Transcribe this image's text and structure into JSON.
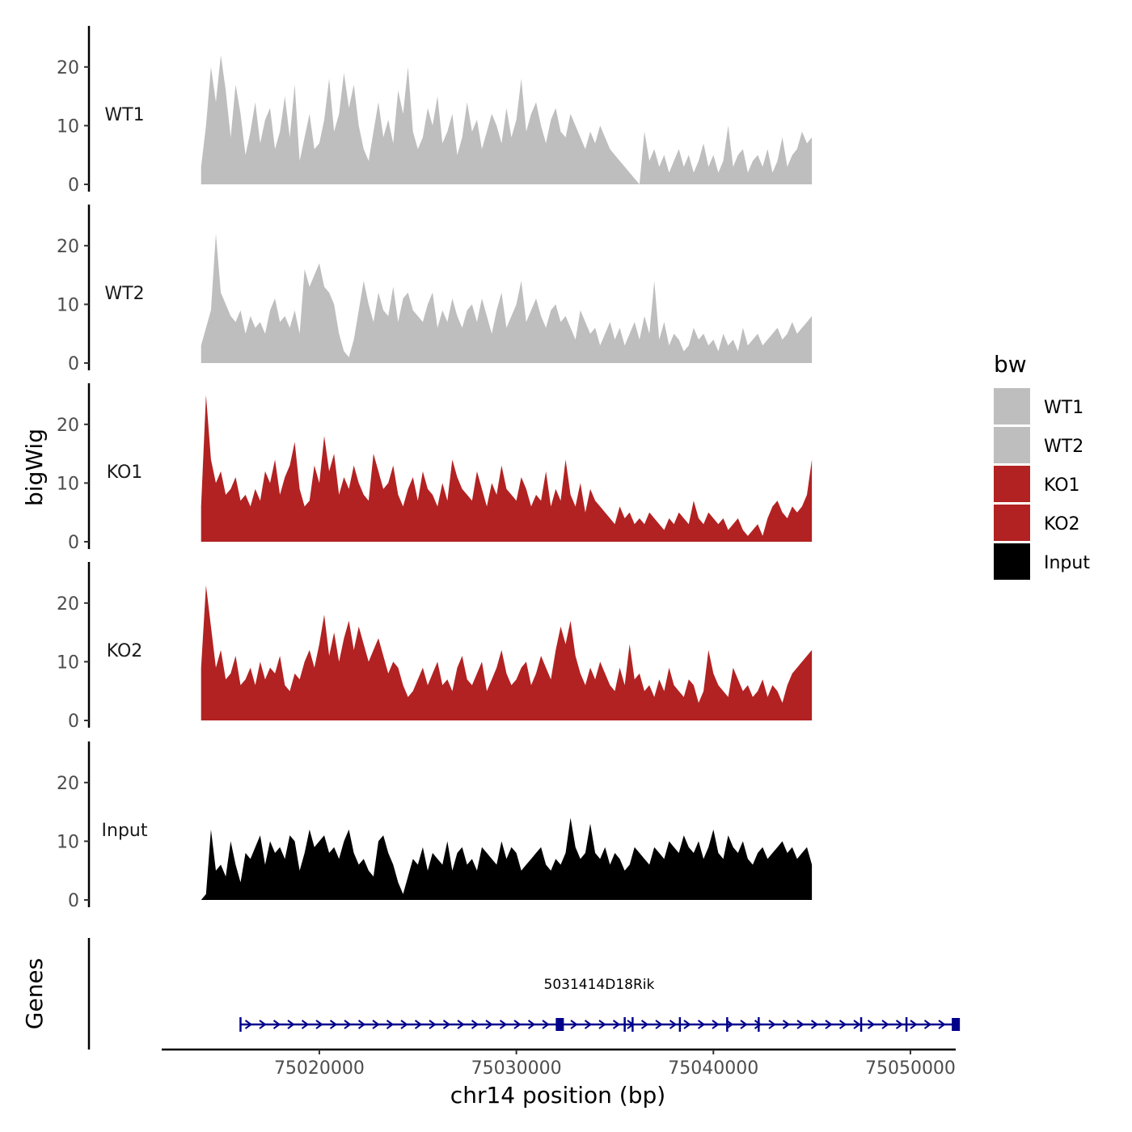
{
  "chart_data": {
    "type": "area",
    "ylabel": "bigWig",
    "xlabel": "chr14 position (bp)",
    "genes_label": "Genes",
    "legend": {
      "title": "bw",
      "position": "right",
      "entries": [
        {
          "name": "WT1",
          "color": "#bebebe"
        },
        {
          "name": "WT2",
          "color": "#bebebe"
        },
        {
          "name": "KO1",
          "color": "#b22222"
        },
        {
          "name": "KO2",
          "color": "#b22222"
        },
        {
          "name": "Input",
          "color": "#000000"
        }
      ]
    },
    "xlim": [
      75012000,
      75052300
    ],
    "x_ticks": [
      75020000,
      75030000,
      75040000,
      75050000
    ],
    "x_tick_labels": [
      "75020000",
      "75030000",
      "75040000",
      "75050000"
    ],
    "ylim": [
      0,
      27
    ],
    "y_ticks": [
      0,
      10,
      20
    ],
    "y_tick_labels": [
      "0",
      "10",
      "20"
    ],
    "data_x_start": 75014000,
    "data_x_step": 250,
    "series": [
      {
        "name": "WT1",
        "color": "#bebebe",
        "values": [
          3,
          10,
          20,
          14,
          22,
          16,
          8,
          17,
          12,
          5,
          9,
          14,
          7,
          11,
          13,
          6,
          9,
          15,
          8,
          17,
          4,
          8,
          12,
          6,
          7,
          11,
          18,
          9,
          12,
          19,
          13,
          17,
          10,
          6,
          4,
          9,
          14,
          8,
          11,
          7,
          16,
          12,
          20,
          9,
          6,
          8,
          13,
          10,
          15,
          7,
          9,
          12,
          5,
          8,
          14,
          9,
          11,
          6,
          9,
          12,
          10,
          7,
          13,
          8,
          11,
          18,
          9,
          12,
          14,
          10,
          7,
          11,
          13,
          9,
          8,
          12,
          10,
          8,
          6,
          9,
          7,
          10,
          8,
          6,
          5,
          4,
          3,
          2,
          1,
          0,
          9,
          4,
          6,
          3,
          5,
          2,
          4,
          6,
          3,
          5,
          2,
          4,
          7,
          3,
          5,
          2,
          4,
          10,
          3,
          5,
          6,
          2,
          4,
          5,
          3,
          6,
          2,
          4,
          8,
          3,
          5,
          6,
          9,
          7,
          8
        ]
      },
      {
        "name": "WT2",
        "color": "#bebebe",
        "values": [
          3,
          6,
          9,
          22,
          12,
          10,
          8,
          7,
          9,
          5,
          8,
          6,
          7,
          5,
          9,
          11,
          7,
          8,
          6,
          9,
          5,
          16,
          13,
          15,
          17,
          13,
          12,
          10,
          5,
          2,
          1,
          4,
          9,
          14,
          10,
          7,
          12,
          9,
          8,
          13,
          7,
          11,
          12,
          9,
          8,
          7,
          10,
          12,
          6,
          9,
          7,
          11,
          8,
          6,
          9,
          10,
          7,
          11,
          8,
          5,
          9,
          12,
          6,
          8,
          10,
          14,
          7,
          9,
          11,
          8,
          6,
          9,
          10,
          7,
          8,
          6,
          4,
          9,
          7,
          5,
          6,
          3,
          5,
          7,
          4,
          6,
          3,
          5,
          7,
          4,
          8,
          5,
          14,
          4,
          7,
          3,
          5,
          4,
          2,
          3,
          6,
          4,
          5,
          3,
          4,
          2,
          5,
          3,
          4,
          2,
          6,
          3,
          4,
          5,
          3,
          4,
          5,
          6,
          4,
          5,
          7,
          5,
          6,
          7,
          8
        ]
      },
      {
        "name": "KO1",
        "color": "#b22222",
        "values": [
          6,
          25,
          14,
          10,
          12,
          8,
          9,
          11,
          7,
          8,
          6,
          9,
          7,
          12,
          10,
          14,
          8,
          11,
          13,
          17,
          9,
          6,
          7,
          13,
          10,
          18,
          12,
          15,
          8,
          11,
          9,
          13,
          10,
          8,
          7,
          15,
          12,
          9,
          10,
          13,
          8,
          6,
          9,
          11,
          7,
          12,
          9,
          8,
          6,
          10,
          7,
          14,
          11,
          9,
          8,
          7,
          12,
          9,
          6,
          10,
          8,
          13,
          9,
          8,
          7,
          11,
          9,
          6,
          8,
          7,
          12,
          6,
          9,
          7,
          14,
          8,
          6,
          10,
          5,
          9,
          7,
          6,
          5,
          4,
          3,
          6,
          4,
          5,
          3,
          4,
          3,
          5,
          4,
          3,
          2,
          4,
          3,
          5,
          4,
          3,
          7,
          4,
          3,
          5,
          4,
          3,
          4,
          2,
          3,
          4,
          2,
          1,
          2,
          3,
          1,
          4,
          6,
          7,
          5,
          4,
          6,
          5,
          6,
          8,
          14
        ]
      },
      {
        "name": "KO2",
        "color": "#b22222",
        "values": [
          9,
          23,
          16,
          9,
          12,
          7,
          8,
          11,
          6,
          7,
          9,
          6,
          10,
          7,
          9,
          8,
          11,
          6,
          5,
          8,
          7,
          10,
          12,
          9,
          13,
          18,
          11,
          15,
          10,
          14,
          17,
          12,
          16,
          13,
          10,
          12,
          14,
          11,
          8,
          10,
          9,
          6,
          4,
          5,
          7,
          9,
          6,
          8,
          10,
          6,
          7,
          5,
          9,
          11,
          7,
          6,
          8,
          10,
          5,
          7,
          9,
          12,
          8,
          6,
          7,
          9,
          10,
          6,
          8,
          11,
          9,
          7,
          12,
          16,
          13,
          17,
          11,
          8,
          6,
          9,
          7,
          10,
          8,
          6,
          5,
          9,
          6,
          13,
          7,
          8,
          5,
          6,
          4,
          7,
          5,
          9,
          6,
          5,
          4,
          7,
          6,
          3,
          5,
          12,
          8,
          6,
          5,
          4,
          9,
          7,
          5,
          6,
          4,
          5,
          7,
          4,
          6,
          5,
          3,
          6,
          8,
          9,
          10,
          11,
          12
        ]
      },
      {
        "name": "Input",
        "color": "#000000",
        "values": [
          0,
          1,
          12,
          5,
          6,
          4,
          10,
          6,
          3,
          8,
          7,
          9,
          11,
          6,
          10,
          8,
          9,
          7,
          11,
          10,
          5,
          8,
          12,
          9,
          10,
          11,
          8,
          9,
          7,
          10,
          12,
          8,
          6,
          7,
          5,
          4,
          10,
          11,
          8,
          6,
          3,
          1,
          4,
          7,
          6,
          9,
          5,
          8,
          7,
          6,
          10,
          5,
          8,
          9,
          6,
          7,
          5,
          9,
          8,
          7,
          6,
          10,
          7,
          9,
          8,
          5,
          6,
          7,
          8,
          9,
          6,
          5,
          7,
          6,
          8,
          14,
          9,
          7,
          8,
          13,
          8,
          7,
          9,
          6,
          8,
          7,
          5,
          6,
          9,
          8,
          7,
          6,
          9,
          8,
          7,
          10,
          9,
          8,
          11,
          9,
          8,
          10,
          7,
          9,
          12,
          8,
          7,
          11,
          9,
          8,
          10,
          7,
          6,
          8,
          9,
          7,
          8,
          9,
          10,
          8,
          9,
          7,
          8,
          9,
          6
        ]
      }
    ],
    "gene": {
      "name": "5031414D18Rik",
      "color": "#00008b",
      "strand": "+",
      "start": 75016000,
      "end": 75052400,
      "exons": [
        {
          "start": 75032000,
          "end": 75032300
        },
        {
          "start": 75052100,
          "end": 75052400
        }
      ],
      "marks": [
        75016000,
        75035500,
        75035900,
        75038300,
        75040700,
        75042300,
        75047500,
        75049800
      ]
    }
  }
}
